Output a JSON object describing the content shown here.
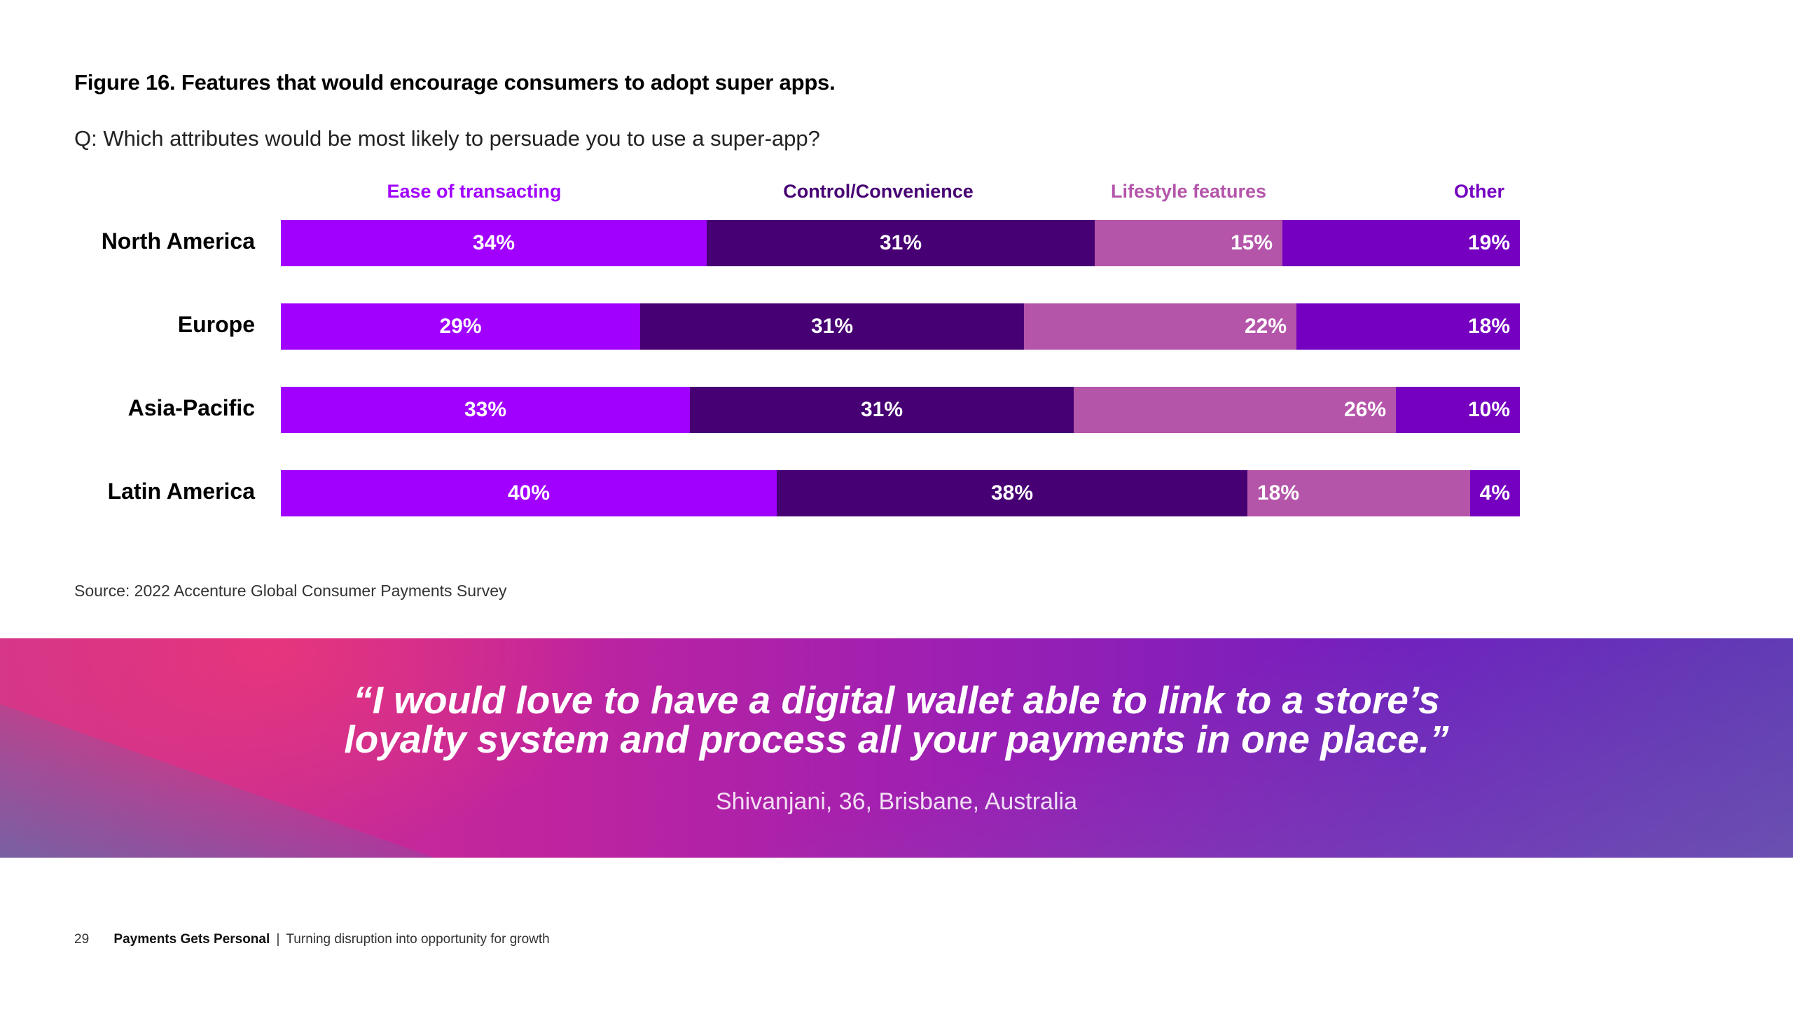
{
  "figure": {
    "title": "Figure 16. Features that would encourage consumers to adopt super apps.",
    "question": "Q: Which attributes would be most likely to persuade you to use a super-app?",
    "source": "Source: 2022 Accenture Global Consumer Payments Survey"
  },
  "chart_data": {
    "type": "bar",
    "orientation": "horizontal",
    "stacked": true,
    "categories": [
      "North America",
      "Europe",
      "Asia-Pacific",
      "Latin America"
    ],
    "series": [
      {
        "name": "Ease of transacting",
        "color": "#a100ff",
        "values": [
          34,
          29,
          33,
          40
        ]
      },
      {
        "name": "Control/Convenience",
        "color": "#460073",
        "values": [
          31,
          31,
          31,
          38
        ]
      },
      {
        "name": "Lifestyle features",
        "color": "#b455aa",
        "values": [
          15,
          22,
          26,
          18
        ]
      },
      {
        "name": "Other",
        "color": "#7500c0",
        "values": [
          19,
          18,
          10,
          4
        ]
      }
    ],
    "value_suffix": "%",
    "legend_position": "top",
    "grid": false
  },
  "banner": {
    "quote_line1": "“I would love to have a digital wallet able to link to a store’s",
    "quote_line2": "loyalty system and process all your payments in one place.”",
    "attribution": "Shivanjani, 36, Brisbane, Australia"
  },
  "footer": {
    "page_number": "29",
    "publication": "Payments Gets Personal",
    "separator": "|",
    "subtitle": "Turning disruption into opportunity for growth"
  }
}
